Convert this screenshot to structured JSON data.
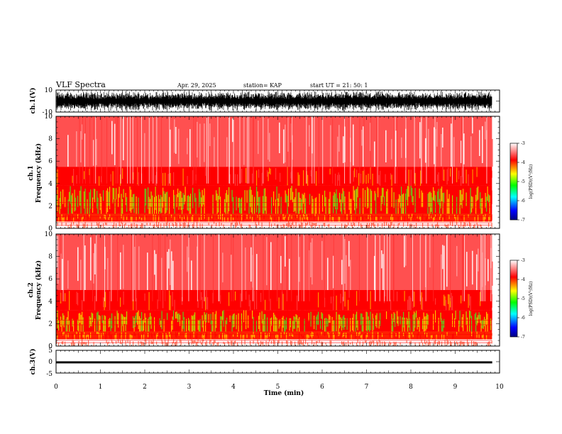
{
  "header": {
    "title": "VLF Spectra",
    "date": "Apr. 29, 2025",
    "station": "station= KAP",
    "start": "start  UT  =   21: 50: 1"
  },
  "chart_data": [
    {
      "type": "line",
      "name": "ch1-waveform",
      "ylabel": "ch.1(V)",
      "ylim": [
        -10,
        10
      ],
      "yticklabels": [
        "10",
        "-10"
      ],
      "xlim": [
        0,
        10
      ],
      "data_extent_min": 9.83
    },
    {
      "type": "heatmap",
      "name": "ch1-spectrogram",
      "ylabel": "ch.1\nFrequency (kHz)",
      "ylabel_lines": [
        "ch.1",
        "Frequency  (kHz)"
      ],
      "ylim": [
        0,
        10
      ],
      "yticks": [
        0,
        2,
        4,
        6,
        8,
        10
      ],
      "xlim": [
        0,
        10
      ],
      "data_extent_min": 9.83,
      "colorbar": {
        "label": "log(PSD)(V²/Hz)",
        "range": [
          -7,
          -3
        ],
        "ticks": [
          "-3",
          "-4",
          "-5",
          "-6",
          "-7"
        ],
        "colors": [
          "#000080",
          "#0000ff",
          "#00ffff",
          "#00ff00",
          "#ffff00",
          "#ff0000",
          "#ffffff"
        ]
      },
      "bands_khz": [
        {
          "from": 0,
          "to": 0.6,
          "level": "mixed"
        },
        {
          "from": 0.6,
          "to": 1.3,
          "level": "high"
        },
        {
          "from": 1.3,
          "to": 3.8,
          "level": "moderate"
        },
        {
          "from": 3.8,
          "to": 5.5,
          "level": "strong-red"
        },
        {
          "from": 5.5,
          "to": 10,
          "level": "low"
        }
      ]
    },
    {
      "type": "heatmap",
      "name": "ch2-spectrogram",
      "ylabel": "ch.2\nFrequency (kHz)",
      "ylabel_lines": [
        "ch.2",
        "Frequency  (kHz)"
      ],
      "ylim": [
        0,
        10
      ],
      "yticks": [
        0,
        2,
        4,
        6,
        8,
        10
      ],
      "xlim": [
        0,
        10
      ],
      "data_extent_min": 9.83,
      "colorbar": {
        "label": "log(PSD)(V²/Hz)",
        "range": [
          -7,
          -3
        ],
        "ticks": [
          "-3",
          "-4",
          "-5",
          "-6",
          "-7"
        ],
        "colors": [
          "#000080",
          "#0000ff",
          "#00ffff",
          "#00ff00",
          "#ffff00",
          "#ff0000",
          "#ffffff"
        ]
      },
      "bands_khz": [
        {
          "from": 0,
          "to": 0.6,
          "level": "mixed"
        },
        {
          "from": 0.6,
          "to": 1.3,
          "level": "high"
        },
        {
          "from": 1.3,
          "to": 3.2,
          "level": "moderate"
        },
        {
          "from": 3.2,
          "to": 5.0,
          "level": "strong-red"
        },
        {
          "from": 5.0,
          "to": 10,
          "level": "low"
        }
      ]
    },
    {
      "type": "line",
      "name": "ch3-waveform",
      "ylabel": "ch.3(V)",
      "ylim": [
        -5,
        5
      ],
      "yticks": [
        5,
        0,
        -5
      ],
      "yticklabels": [
        "5",
        "0",
        "-5"
      ],
      "level": -0.3,
      "amplitude": 0.35,
      "xlim": [
        0,
        10
      ],
      "data_extent_min": 9.83
    }
  ],
  "xaxis": {
    "label": "Time  (min)",
    "ticks": [
      "0",
      "1",
      "2",
      "3",
      "4",
      "5",
      "6",
      "7",
      "8",
      "9",
      "10"
    ]
  }
}
